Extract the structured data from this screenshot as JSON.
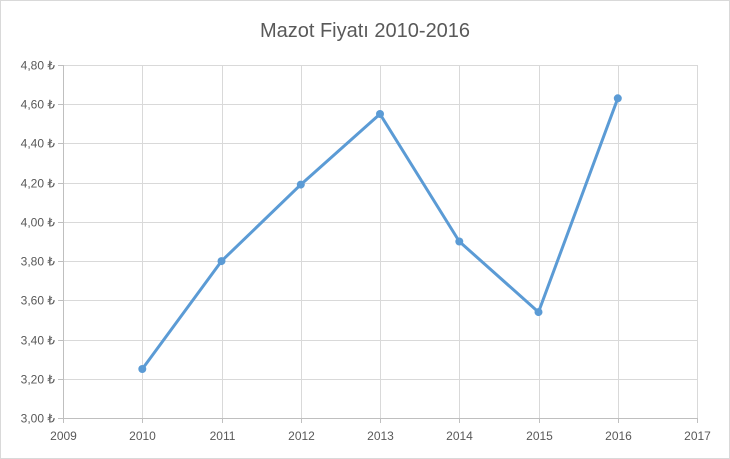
{
  "chart_data": {
    "type": "line",
    "title": "Mazot Fiyatı 2010-2016",
    "xlabel": "",
    "ylabel": "",
    "xlim": [
      2009,
      2017
    ],
    "ylim": [
      3.0,
      4.8
    ],
    "x_ticks": [
      "2009",
      "2010",
      "2011",
      "2012",
      "2013",
      "2014",
      "2015",
      "2016",
      "2017"
    ],
    "y_ticks": [
      "3,00 ₺",
      "3,20 ₺",
      "3,40 ₺",
      "3,60 ₺",
      "3,80 ₺",
      "4,00 ₺",
      "4,20 ₺",
      "4,40 ₺",
      "4,60 ₺",
      "4,80 ₺"
    ],
    "y_tick_values": [
      3.0,
      3.2,
      3.4,
      3.6,
      3.8,
      4.0,
      4.2,
      4.4,
      4.6,
      4.8
    ],
    "x_tick_values": [
      2009,
      2010,
      2011,
      2012,
      2013,
      2014,
      2015,
      2016,
      2017
    ],
    "series": [
      {
        "x": [
          2010,
          2011,
          2012,
          2013,
          2014,
          2015,
          2016
        ],
        "values": [
          3.25,
          3.8,
          4.19,
          4.55,
          3.9,
          3.54,
          4.63
        ],
        "color": "#5b9bd5"
      }
    ],
    "grid": true,
    "legend": "none"
  }
}
